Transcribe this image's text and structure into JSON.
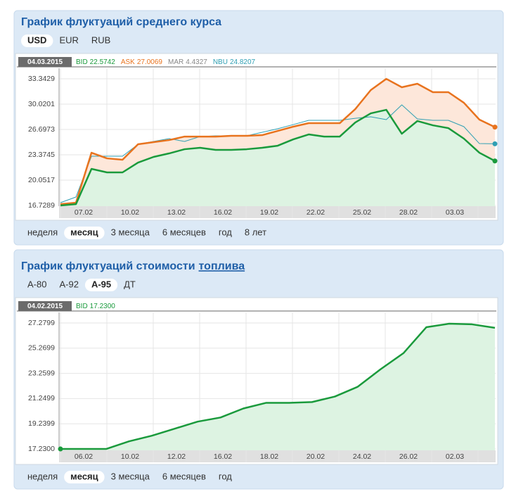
{
  "chart_data": [
    {
      "type": "line",
      "title": "График флуктуаций среднего курса",
      "tabs": [
        "USD",
        "EUR",
        "RUB"
      ],
      "tab_active": 0,
      "periods": [
        "неделя",
        "месяц",
        "3 месяца",
        "6 месяцев",
        "год",
        "8 лет"
      ],
      "period_active": 1,
      "date": "04.03.2015",
      "marker_at": "end",
      "series": [
        {
          "name": "BID",
          "current": 22.5742,
          "color": "#1a9a3c",
          "fill": "#ddf3e2",
          "values": [
            16.73,
            16.91,
            21.53,
            21.07,
            21.07,
            22.36,
            23.1,
            23.56,
            24.11,
            24.3,
            24.02,
            24.02,
            24.11,
            24.3,
            24.57,
            25.4,
            26.05,
            25.77,
            25.77,
            27.62,
            28.82,
            29.28,
            26.14,
            27.81,
            27.25,
            26.88,
            25.5,
            23.65,
            22.57
          ]
        },
        {
          "name": "ASK",
          "current": 27.0069,
          "color": "#e8731e",
          "fill": "#fde7da",
          "values": [
            16.91,
            17.1,
            23.65,
            22.91,
            22.73,
            24.76,
            25.04,
            25.31,
            25.77,
            25.77,
            25.77,
            25.87,
            25.87,
            25.96,
            26.51,
            27.07,
            27.53,
            27.53,
            27.53,
            29.37,
            31.87,
            33.34,
            32.24,
            32.7,
            31.59,
            31.59,
            30.2,
            27.99,
            27.01
          ]
        },
        {
          "name": "MAR",
          "current": 4.4327,
          "color": "#888888"
        },
        {
          "name": "NBU",
          "current": 24.8207,
          "color": "#2f9fb3",
          "values": [
            17.1,
            17.84,
            23.19,
            23.19,
            23.19,
            24.76,
            25.13,
            25.5,
            25.13,
            25.77,
            25.87,
            25.87,
            25.87,
            26.33,
            26.79,
            27.34,
            27.9,
            27.9,
            27.9,
            28.17,
            28.36,
            27.99,
            29.93,
            28.08,
            27.9,
            27.9,
            27.07,
            24.85,
            24.82
          ]
        }
      ],
      "xlabels": [
        "07.02",
        "10.02",
        "13.02",
        "16.02",
        "19.02",
        "22.02",
        "25.02",
        "28.02",
        "03.03",
        null
      ],
      "ylim": [
        16.64,
        34.73
      ],
      "yticks": [
        16.7289,
        20.0517,
        23.3745,
        26.6973,
        30.0201,
        33.3429
      ],
      "grid": true
    },
    {
      "type": "line",
      "title": "График флуктуаций стоимости",
      "title_link": "топлива",
      "tabs": [
        "А-80",
        "А-92",
        "А-95",
        "ДТ"
      ],
      "tab_active": 2,
      "periods": [
        "неделя",
        "месяц",
        "3 месяца",
        "6 месяцев",
        "год"
      ],
      "period_active": 1,
      "date": "04.02.2015",
      "marker_at": "start",
      "series": [
        {
          "name": "BID",
          "current": {
            "value": 17.23,
            "label": "17.2300"
          },
          "color": "#1a9a3c",
          "fill": "#ddf3e2",
          "values": [
            17.23,
            17.23,
            17.23,
            17.84,
            18.29,
            18.85,
            19.41,
            19.74,
            20.46,
            20.91,
            20.91,
            20.97,
            21.41,
            22.19,
            23.59,
            24.87,
            26.94,
            27.22,
            27.17,
            26.89
          ]
        }
      ],
      "xlabels": [
        "06.02",
        "10.02",
        "12.02",
        "16.02",
        "18.02",
        "20.02",
        "24.02",
        "26.02",
        "02.03",
        null
      ],
      "ylim": [
        17.12,
        28.12
      ],
      "yticks": [
        {
          "value": 17.23,
          "label": "17.2300"
        },
        19.2399,
        21.2499,
        23.2599,
        25.2699,
        27.2799
      ],
      "grid": true
    }
  ]
}
